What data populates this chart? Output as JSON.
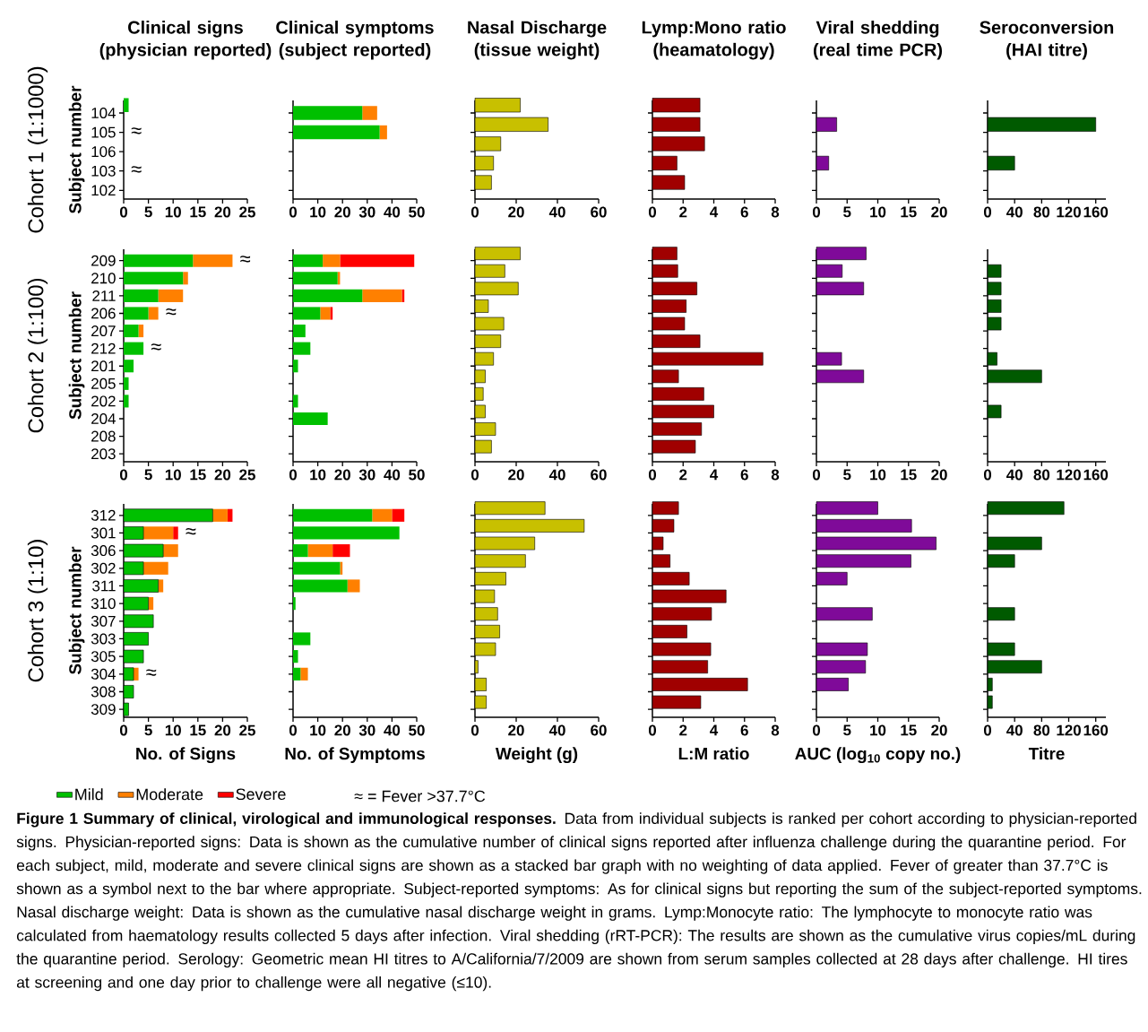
{
  "chart_data": [
    {
      "type": "bar",
      "orientation": "horizontal",
      "title": "Clinical signs (physician reported)",
      "subtitle": "Cohort 1 (1:1000)",
      "ylabel": "Subject number",
      "categories": [
        "104",
        "105",
        "106",
        "103",
        "102"
      ],
      "xlim": [
        0,
        25
      ],
      "xticks": [
        0,
        5,
        10,
        15,
        20,
        25
      ],
      "series": [
        {
          "color": "#00c000",
          "values": [
            1,
            0,
            0,
            0,
            0
          ]
        }
      ],
      "annotations": [
        {
          "text": "≈",
          "x": 0,
          "y": "105"
        },
        {
          "text": "≈",
          "x": 0,
          "y": "103"
        }
      ]
    },
    {
      "type": "bar",
      "orientation": "horizontal",
      "stacked": true,
      "title": "Clinical symptoms (subject reported)",
      "tick_labels": "x",
      "categories": [
        "104",
        "105",
        "106",
        "103",
        "102"
      ],
      "xlim": [
        0,
        50
      ],
      "xticks": [
        0,
        10,
        20,
        30,
        40,
        50
      ],
      "series": [
        {
          "color": "#00c000",
          "values": [
            28,
            35,
            0,
            0,
            0
          ]
        },
        {
          "color": "#ff8000",
          "values": [
            6,
            3,
            0,
            0,
            0
          ]
        }
      ]
    },
    {
      "type": "bar",
      "orientation": "horizontal",
      "title": "Nasal Discharge (tissue weight)",
      "tick_labels": "x",
      "categories": [
        "104",
        "105",
        "106",
        "103",
        "102"
      ],
      "xlim": [
        0,
        60
      ],
      "xticks": [
        0,
        20,
        40,
        60
      ],
      "color": "#c8c000",
      "values": [
        22,
        35.5,
        12.5,
        9,
        8
      ]
    },
    {
      "type": "bar",
      "orientation": "horizontal",
      "title": "Lymp:Mono ratio (heamatology)",
      "tick_labels": "x",
      "categories": [
        "104",
        "105",
        "106",
        "103",
        "102"
      ],
      "xlim": [
        0,
        8
      ],
      "xticks": [
        0,
        2,
        4,
        6,
        8
      ],
      "color": "#a00000",
      "values": [
        3.1,
        3.1,
        3.4,
        1.6,
        2.1
      ]
    },
    {
      "type": "bar",
      "orientation": "horizontal",
      "title": "Viral shedding (real time PCR)",
      "tick_labels": "x",
      "categories": [
        "104",
        "105",
        "106",
        "103",
        "102"
      ],
      "xlim": [
        0,
        20
      ],
      "xticks": [
        0,
        5,
        10,
        15,
        20
      ],
      "color": "#7f0a99",
      "values": [
        null,
        3.3,
        null,
        2,
        null
      ]
    },
    {
      "type": "bar",
      "orientation": "horizontal",
      "title": "Seroconversion (HAI titre)",
      "tick_labels": "x",
      "categories": [
        "104",
        "105",
        "106",
        "103",
        "102"
      ],
      "xlim": [
        0,
        175
      ],
      "xticks": [
        0,
        40,
        80,
        120,
        160
      ],
      "color": "#005a00",
      "values": [
        null,
        160,
        null,
        40,
        null
      ]
    },
    {
      "type": "bar",
      "orientation": "horizontal",
      "stacked": true,
      "subtitle": "Cohort 2 (1:100)",
      "ylabel": "Subject number",
      "categories": [
        "209",
        "210",
        "211",
        "206",
        "207",
        "212",
        "201",
        "205",
        "202",
        "204",
        "208",
        "203"
      ],
      "xlim": [
        0,
        25
      ],
      "xticks": [
        0,
        5,
        10,
        15,
        20,
        25
      ],
      "series": [
        {
          "color": "#00c000",
          "values": [
            14,
            12,
            7,
            5,
            3,
            4,
            2,
            1,
            1,
            0,
            0,
            0
          ]
        },
        {
          "color": "#ff8000",
          "values": [
            8,
            1,
            5,
            2,
            1,
            0,
            0,
            0,
            0,
            0,
            0,
            0
          ]
        }
      ],
      "annotations": [
        {
          "text": "≈",
          "x": 22,
          "y": "209"
        },
        {
          "text": "≈",
          "x": 7,
          "y": "206"
        },
        {
          "text": "≈",
          "x": 4,
          "y": "212"
        }
      ]
    },
    {
      "type": "bar",
      "orientation": "horizontal",
      "stacked": true,
      "tick_labels": "x",
      "categories": [
        "209",
        "210",
        "211",
        "206",
        "207",
        "212",
        "201",
        "205",
        "202",
        "204",
        "208",
        "203"
      ],
      "xlim": [
        0,
        50
      ],
      "xticks": [
        0,
        10,
        20,
        30,
        40,
        50
      ],
      "series": [
        {
          "color": "#00c000",
          "values": [
            12,
            18,
            28,
            11,
            5,
            7,
            2,
            0,
            2,
            14,
            0,
            0
          ]
        },
        {
          "color": "#ff8000",
          "values": [
            7,
            1,
            16,
            4,
            0,
            0,
            0,
            0,
            0,
            0,
            0,
            0
          ]
        },
        {
          "color": "#ff0000",
          "values": [
            30,
            0,
            1,
            1,
            0,
            0,
            0,
            0,
            0,
            0,
            0,
            0
          ]
        }
      ]
    },
    {
      "type": "bar",
      "orientation": "horizontal",
      "tick_labels": "x",
      "categories": [
        "209",
        "210",
        "211",
        "206",
        "207",
        "212",
        "201",
        "205",
        "202",
        "204",
        "208",
        "203"
      ],
      "xlim": [
        0,
        60
      ],
      "xticks": [
        0,
        20,
        40,
        60
      ],
      "color": "#c8c000",
      "values": [
        22,
        14.5,
        21,
        6.5,
        14,
        12.5,
        9,
        5,
        4,
        5,
        10,
        8
      ]
    },
    {
      "type": "bar",
      "orientation": "horizontal",
      "tick_labels": "x",
      "categories": [
        "209",
        "210",
        "211",
        "206",
        "207",
        "212",
        "201",
        "205",
        "202",
        "204",
        "208",
        "203"
      ],
      "xlim": [
        0,
        8
      ],
      "xticks": [
        0,
        2,
        4,
        6,
        8
      ],
      "color": "#a00000",
      "values": [
        1.6,
        1.65,
        2.9,
        2.2,
        2.1,
        3.1,
        7.2,
        1.7,
        3.35,
        4.0,
        3.2,
        2.8
      ]
    },
    {
      "type": "bar",
      "orientation": "horizontal",
      "tick_labels": "x",
      "categories": [
        "209",
        "210",
        "211",
        "206",
        "207",
        "212",
        "201",
        "205",
        "202",
        "204",
        "208",
        "203"
      ],
      "xlim": [
        0,
        20
      ],
      "xticks": [
        0,
        5,
        10,
        15,
        20
      ],
      "color": "#7f0a99",
      "values": [
        8.1,
        4.2,
        7.7,
        null,
        null,
        null,
        4.1,
        7.7,
        null,
        null,
        null,
        null
      ]
    },
    {
      "type": "bar",
      "orientation": "horizontal",
      "tick_labels": "x",
      "categories": [
        "209",
        "210",
        "211",
        "206",
        "207",
        "212",
        "201",
        "205",
        "202",
        "204",
        "208",
        "203"
      ],
      "xlim": [
        0,
        175
      ],
      "xticks": [
        0,
        40,
        80,
        120,
        160
      ],
      "color": "#005a00",
      "values": [
        null,
        20,
        20,
        20,
        20,
        null,
        14,
        80,
        null,
        20,
        null,
        null
      ]
    },
    {
      "type": "bar",
      "orientation": "horizontal",
      "stacked": true,
      "subtitle": "Cohort 3 (1:10)",
      "ylabel": "Subject number",
      "xlabel": "No. of Signs",
      "legend": "bottom",
      "categories": [
        "312",
        "301",
        "306",
        "302",
        "311",
        "310",
        "307",
        "303",
        "305",
        "304",
        "308",
        "309"
      ],
      "xlim": [
        0,
        25
      ],
      "xticks": [
        0,
        5,
        10,
        15,
        20,
        25
      ],
      "series": [
        {
          "name": "Mild",
          "color": "#00c000",
          "values": [
            18,
            4,
            8,
            4,
            7,
            5,
            6,
            5,
            4,
            2,
            2,
            1
          ]
        },
        {
          "name": "Moderate",
          "color": "#ff8000",
          "values": [
            3,
            6,
            3,
            5,
            1,
            1,
            0,
            0,
            0,
            1,
            0,
            0
          ]
        },
        {
          "name": "Severe",
          "color": "#ff0000",
          "values": [
            1,
            1,
            0,
            0,
            0,
            0,
            0,
            0,
            0,
            0,
            0,
            0
          ]
        }
      ],
      "annotations": [
        {
          "text": "≈",
          "x": 11,
          "y": "301"
        },
        {
          "text": "≈",
          "x": 3,
          "y": "304"
        },
        "≈ = Fever >37.7°C",
        "**Figure 1 Summary of clinical, virological and immunological responses.** Data from individual subjects is ranked per cohort according to physician-reported signs. Physician-reported signs: Data is shown as the cumulative number of clinical signs reported after influenza challenge during the quarantine period. For each subject, mild, moderate and severe clinical signs are shown as a stacked bar graph with no weighting of data applied. Fever of greater than 37.7°C is shown as a symbol next to the bar where appropriate. Subject-reported symptoms: As for clinical signs but reporting the sum of the subject-reported symptoms. Nasal discharge weight: Data is shown as the cumulative nasal discharge weight in grams. Lymp:Monocyte ratio: The lymphocyte to monocyte ratio was calculated from haematology results collected 5 days after infection. Viral shedding (rRT-PCR): The results are shown as the cumulative virus copies/mL during the quarantine period. Serology: Geometric mean HI titres to A/California/7/2009 are shown from serum samples collected at 28 days after challenge. HI tires at screening and one day prior to challenge were all negative (≤10)."
      ]
    },
    {
      "type": "bar",
      "orientation": "horizontal",
      "stacked": true,
      "tick_labels": "x",
      "xlabel": "No. of Symptoms",
      "categories": [
        "312",
        "301",
        "306",
        "302",
        "311",
        "310",
        "307",
        "303",
        "305",
        "304",
        "308",
        "309"
      ],
      "xlim": [
        0,
        50
      ],
      "xticks": [
        0,
        10,
        20,
        30,
        40,
        50
      ],
      "series": [
        {
          "color": "#00c000",
          "values": [
            32,
            43,
            6,
            19,
            22,
            1,
            0,
            7,
            2,
            3,
            0,
            0
          ]
        },
        {
          "color": "#ff8000",
          "values": [
            8,
            0,
            10,
            1,
            5,
            0,
            0,
            0,
            0,
            3,
            0,
            0
          ]
        },
        {
          "color": "#ff0000",
          "values": [
            5,
            0,
            7,
            0,
            0,
            0,
            0,
            0,
            0,
            0,
            0,
            0
          ]
        }
      ]
    },
    {
      "type": "bar",
      "orientation": "horizontal",
      "tick_labels": "x",
      "xlabel": "Weight (g)",
      "categories": [
        "312",
        "301",
        "306",
        "302",
        "311",
        "310",
        "307",
        "303",
        "305",
        "304",
        "308",
        "309"
      ],
      "xlim": [
        0,
        60
      ],
      "xticks": [
        0,
        20,
        40,
        60
      ],
      "color": "#c8c000",
      "values": [
        34,
        53,
        29,
        24.5,
        15,
        9.5,
        11,
        12,
        10,
        1.5,
        5.5,
        5.5
      ]
    },
    {
      "type": "bar",
      "orientation": "horizontal",
      "tick_labels": "x",
      "xlabel": "L:M ratio",
      "categories": [
        "312",
        "301",
        "306",
        "302",
        "311",
        "310",
        "307",
        "303",
        "305",
        "304",
        "308",
        "309"
      ],
      "xlim": [
        0,
        8
      ],
      "xticks": [
        0,
        2,
        4,
        6,
        8
      ],
      "color": "#a00000",
      "values": [
        1.7,
        1.4,
        0.7,
        1.15,
        2.4,
        4.8,
        3.85,
        2.25,
        3.8,
        3.6,
        6.2,
        3.15
      ]
    },
    {
      "type": "bar",
      "orientation": "horizontal",
      "tick_labels": "x",
      "xlabel": "AUC (log$_{10}$ copy no.)",
      "categories": [
        "312",
        "301",
        "306",
        "302",
        "311",
        "310",
        "307",
        "303",
        "305",
        "304",
        "308",
        "309"
      ],
      "xlim": [
        0,
        20
      ],
      "xticks": [
        0,
        5,
        10,
        15,
        20
      ],
      "color": "#7f0a99",
      "values": [
        10,
        15.5,
        19.5,
        15.4,
        5,
        null,
        9.1,
        null,
        8.3,
        8,
        5.2,
        null
      ]
    },
    {
      "type": "bar",
      "orientation": "horizontal",
      "tick_labels": "x",
      "xlabel": "Titre",
      "categories": [
        "312",
        "301",
        "306",
        "302",
        "311",
        "310",
        "307",
        "303",
        "305",
        "304",
        "308",
        "309"
      ],
      "xlim": [
        0,
        175
      ],
      "xticks": [
        0,
        40,
        80,
        120,
        160
      ],
      "color": "#005a00",
      "values": [
        113,
        null,
        80,
        40,
        null,
        null,
        40,
        null,
        40,
        80,
        7,
        7
      ]
    }
  ]
}
